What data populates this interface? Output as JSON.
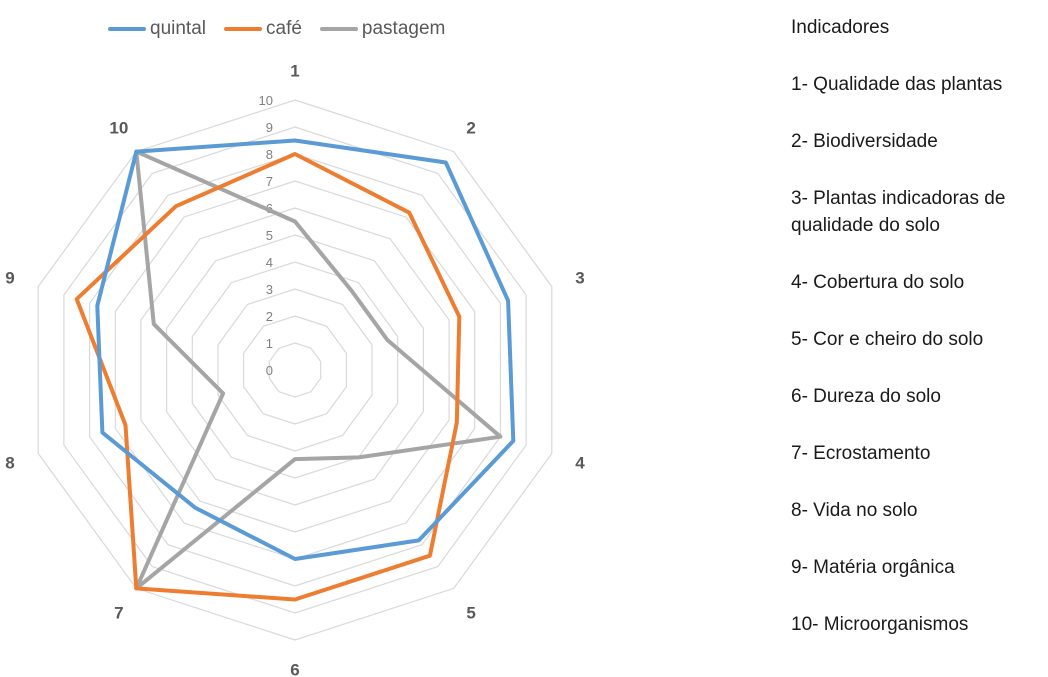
{
  "chart_data": {
    "type": "radar",
    "categories": [
      "1",
      "2",
      "3",
      "4",
      "5",
      "6",
      "7",
      "8",
      "9",
      "10"
    ],
    "rmin": 0,
    "rmax": 10,
    "ticks": [
      "0",
      "1",
      "2",
      "3",
      "4",
      "5",
      "6",
      "7",
      "8",
      "9",
      "10"
    ],
    "grid": true,
    "legend_position": "top",
    "series": [
      {
        "name": "quintal",
        "color": "#5B9BD5",
        "values": [
          8.5,
          9.5,
          8.3,
          8.5,
          7.8,
          7.0,
          6.3,
          7.5,
          7.7,
          10.0
        ]
      },
      {
        "name": "café",
        "color": "#ED7D31",
        "values": [
          8.0,
          7.2,
          6.4,
          6.3,
          8.5,
          8.5,
          10.0,
          6.6,
          8.5,
          7.5
        ]
      },
      {
        "name": "pastagem",
        "color": "#A5A5A5",
        "values": [
          5.5,
          3.6,
          3.6,
          8.0,
          4.0,
          3.3,
          10.0,
          2.8,
          5.5,
          10.0
        ]
      }
    ]
  },
  "indicators": {
    "title": "Indicadores",
    "items": [
      "1- Qualidade das plantas",
      "2- Biodiversidade",
      "3- Plantas indicadoras de qualidade do solo",
      "4- Cobertura do solo",
      "5- Cor e cheiro do solo",
      "6- Dureza do solo",
      "7- Ecrostamento",
      "8- Vida no solo",
      "9- Matéria orgânica",
      "10- Microorganismos"
    ]
  }
}
